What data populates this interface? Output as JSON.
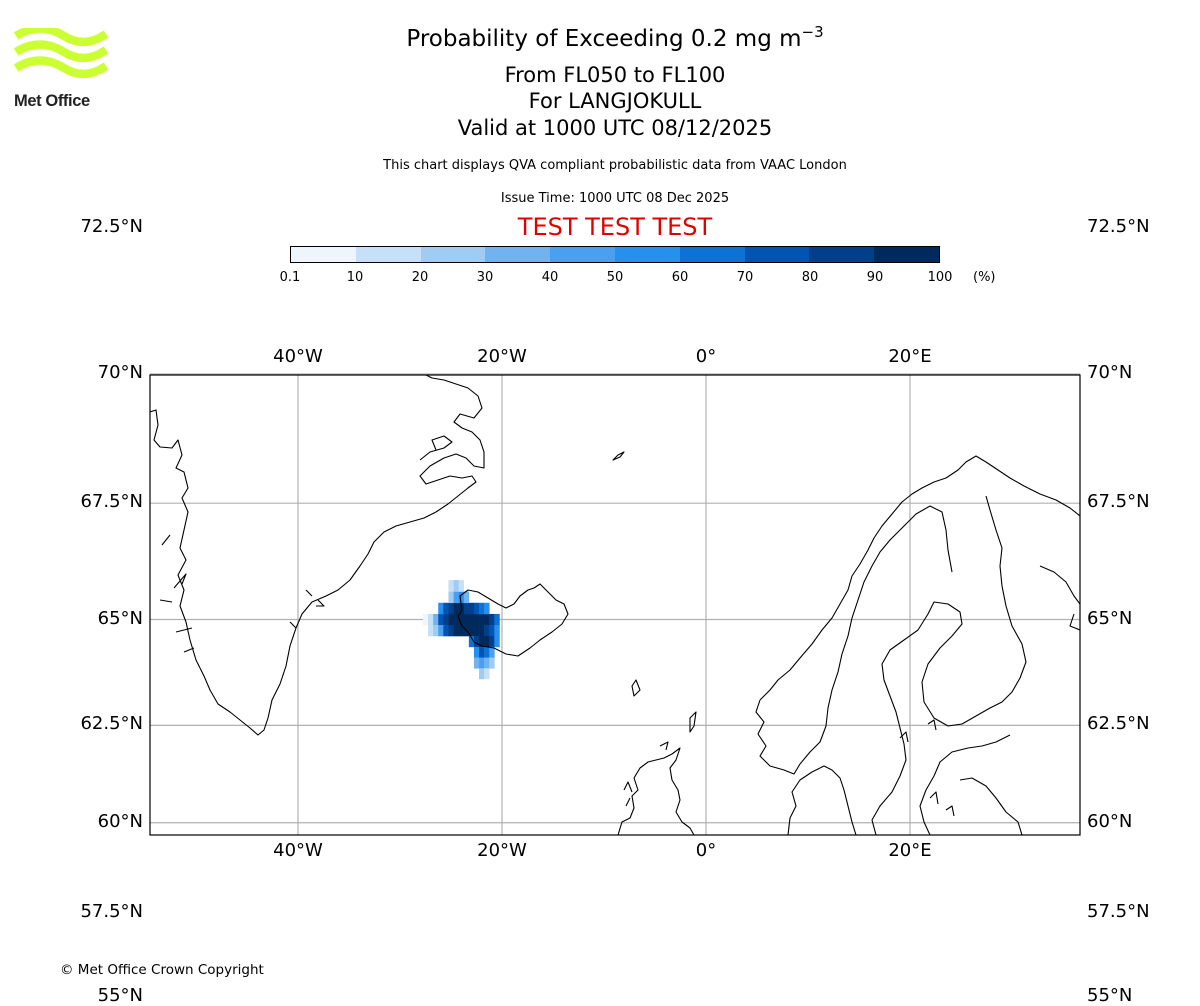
{
  "brand": {
    "name": "Met Office",
    "logo_color": "#ccff33"
  },
  "header": {
    "title_prefix": "Probability of Exceeding 0.2 mg m",
    "title_exponent": "−3",
    "levels": "From FL050 to FL100",
    "location": "For LANGJOKULL",
    "valid": "Valid at 1000 UTC 08/12/2025",
    "description": "This chart displays QVA compliant probabilistic data from VAAC London",
    "issue_time": "Issue Time: 1000 UTC 08 Dec 2025",
    "test_label": "TEST TEST TEST"
  },
  "colorbar": {
    "ticks": [
      "0.1",
      "10",
      "20",
      "30",
      "40",
      "50",
      "60",
      "70",
      "80",
      "90",
      "100"
    ],
    "unit": "(%)",
    "colors": [
      "#eef5fd",
      "#c6e0f7",
      "#a0cbf3",
      "#70b3f0",
      "#4aa0f0",
      "#2590ee",
      "#0d72d6",
      "#0055b4",
      "#003f8c",
      "#002a5d"
    ]
  },
  "map": {
    "lon_labels": [
      "40°W",
      "20°W",
      "0°",
      "20°E"
    ],
    "lat_labels": [
      "72.5°N",
      "70°N",
      "67.5°N",
      "65°N",
      "62.5°N",
      "60°N",
      "57.5°N",
      "55°N"
    ],
    "plume_cells": [
      {
        "lon": -27.5,
        "lat": 65.0,
        "p": 5
      },
      {
        "lon": -27.0,
        "lat": 65.0,
        "p": 15
      },
      {
        "lon": -26.5,
        "lat": 65.0,
        "p": 35
      },
      {
        "lon": -26.0,
        "lat": 65.0,
        "p": 75
      },
      {
        "lon": -25.5,
        "lat": 65.0,
        "p": 85
      },
      {
        "lon": -25.0,
        "lat": 65.0,
        "p": 95
      },
      {
        "lon": -24.5,
        "lat": 65.0,
        "p": 95
      },
      {
        "lon": -24.0,
        "lat": 65.0,
        "p": 95
      },
      {
        "lon": -23.5,
        "lat": 65.0,
        "p": 95
      },
      {
        "lon": -23.0,
        "lat": 65.0,
        "p": 95
      },
      {
        "lon": -22.5,
        "lat": 65.0,
        "p": 95
      },
      {
        "lon": -22.0,
        "lat": 65.0,
        "p": 95
      },
      {
        "lon": -21.5,
        "lat": 65.0,
        "p": 95
      },
      {
        "lon": -21.0,
        "lat": 65.0,
        "p": 85
      },
      {
        "lon": -20.5,
        "lat": 65.0,
        "p": 65
      },
      {
        "lon": -27.0,
        "lat": 64.75,
        "p": 10
      },
      {
        "lon": -26.5,
        "lat": 64.75,
        "p": 25
      },
      {
        "lon": -26.0,
        "lat": 64.75,
        "p": 45
      },
      {
        "lon": -25.5,
        "lat": 64.75,
        "p": 70
      },
      {
        "lon": -25.0,
        "lat": 64.75,
        "p": 85
      },
      {
        "lon": -24.5,
        "lat": 64.75,
        "p": 95
      },
      {
        "lon": -24.0,
        "lat": 64.75,
        "p": 95
      },
      {
        "lon": -23.5,
        "lat": 64.75,
        "p": 95
      },
      {
        "lon": -23.0,
        "lat": 64.75,
        "p": 95
      },
      {
        "lon": -22.5,
        "lat": 64.75,
        "p": 95
      },
      {
        "lon": -22.0,
        "lat": 64.75,
        "p": 95
      },
      {
        "lon": -21.5,
        "lat": 64.75,
        "p": 85
      },
      {
        "lon": -21.0,
        "lat": 64.75,
        "p": 75
      },
      {
        "lon": -20.5,
        "lat": 64.75,
        "p": 55
      },
      {
        "lon": -26.0,
        "lat": 65.25,
        "p": 55
      },
      {
        "lon": -25.5,
        "lat": 65.25,
        "p": 75
      },
      {
        "lon": -25.0,
        "lat": 65.25,
        "p": 85
      },
      {
        "lon": -24.5,
        "lat": 65.25,
        "p": 95
      },
      {
        "lon": -24.0,
        "lat": 65.25,
        "p": 95
      },
      {
        "lon": -23.5,
        "lat": 65.25,
        "p": 85
      },
      {
        "lon": -23.0,
        "lat": 65.25,
        "p": 85
      },
      {
        "lon": -22.5,
        "lat": 65.25,
        "p": 75
      },
      {
        "lon": -22.0,
        "lat": 65.25,
        "p": 65
      },
      {
        "lon": -21.5,
        "lat": 65.25,
        "p": 55
      },
      {
        "lon": -25.0,
        "lat": 65.5,
        "p": 25
      },
      {
        "lon": -24.5,
        "lat": 65.5,
        "p": 45
      },
      {
        "lon": -24.0,
        "lat": 65.5,
        "p": 55
      },
      {
        "lon": -23.5,
        "lat": 65.5,
        "p": 35
      },
      {
        "lon": -25.0,
        "lat": 65.75,
        "p": 15
      },
      {
        "lon": -24.5,
        "lat": 65.75,
        "p": 25
      },
      {
        "lon": -24.0,
        "lat": 65.75,
        "p": 15
      },
      {
        "lon": -23.0,
        "lat": 64.5,
        "p": 65
      },
      {
        "lon": -22.5,
        "lat": 64.5,
        "p": 85
      },
      {
        "lon": -22.0,
        "lat": 64.5,
        "p": 95
      },
      {
        "lon": -21.5,
        "lat": 64.5,
        "p": 95
      },
      {
        "lon": -21.0,
        "lat": 64.5,
        "p": 85
      },
      {
        "lon": -20.5,
        "lat": 64.5,
        "p": 55
      },
      {
        "lon": -22.5,
        "lat": 64.25,
        "p": 55
      },
      {
        "lon": -22.0,
        "lat": 64.25,
        "p": 75
      },
      {
        "lon": -21.5,
        "lat": 64.25,
        "p": 65
      },
      {
        "lon": -21.0,
        "lat": 64.25,
        "p": 45
      },
      {
        "lon": -22.5,
        "lat": 64.0,
        "p": 35
      },
      {
        "lon": -22.0,
        "lat": 64.0,
        "p": 45
      },
      {
        "lon": -21.5,
        "lat": 64.0,
        "p": 35
      },
      {
        "lon": -21.0,
        "lat": 64.0,
        "p": 25
      },
      {
        "lon": -22.0,
        "lat": 63.75,
        "p": 25
      },
      {
        "lon": -21.5,
        "lat": 63.75,
        "p": 15
      }
    ]
  },
  "footer": {
    "copyright": "© Met Office Crown Copyright"
  }
}
